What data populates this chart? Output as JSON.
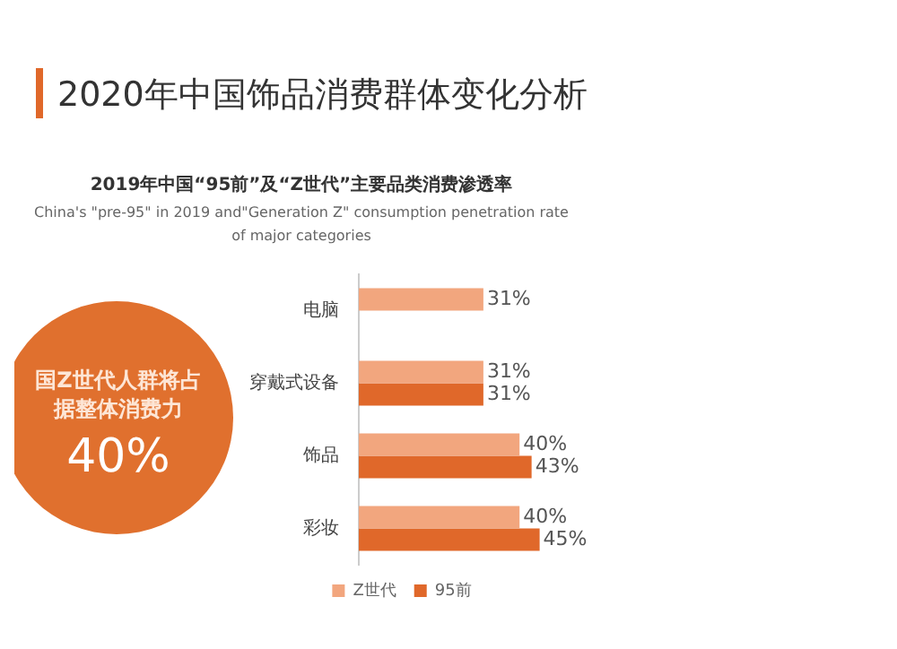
{
  "chart_data": {
    "type": "bar",
    "orientation": "horizontal",
    "title": "2020年中国饰品消费群体变化分析",
    "subtitle": "2019年中国“95前”及“Z世代”主要品类消费渗透率\nChina's \"pre-95\" in 2019 and\"Generation Z\" consumption penetration rate of major categories",
    "categories": [
      "电脑",
      "穿戴式设备",
      "饰品",
      "彩妆"
    ],
    "series": [
      {
        "name": "Z世代",
        "color": "#f2a67e",
        "values": [
          31,
          31,
          40,
          40
        ],
        "value_labels": [
          "31%",
          "31%",
          "40%",
          "40%"
        ]
      },
      {
        "name": "95前",
        "color": "#e0682a",
        "values": [
          null,
          31,
          43,
          45
        ],
        "value_labels": [
          null,
          "31%",
          "43%",
          "45%"
        ]
      }
    ],
    "legend": "bottom",
    "annotations": [
      "国Z世代人群将占据整体消费力",
      "40%"
    ]
  }
}
